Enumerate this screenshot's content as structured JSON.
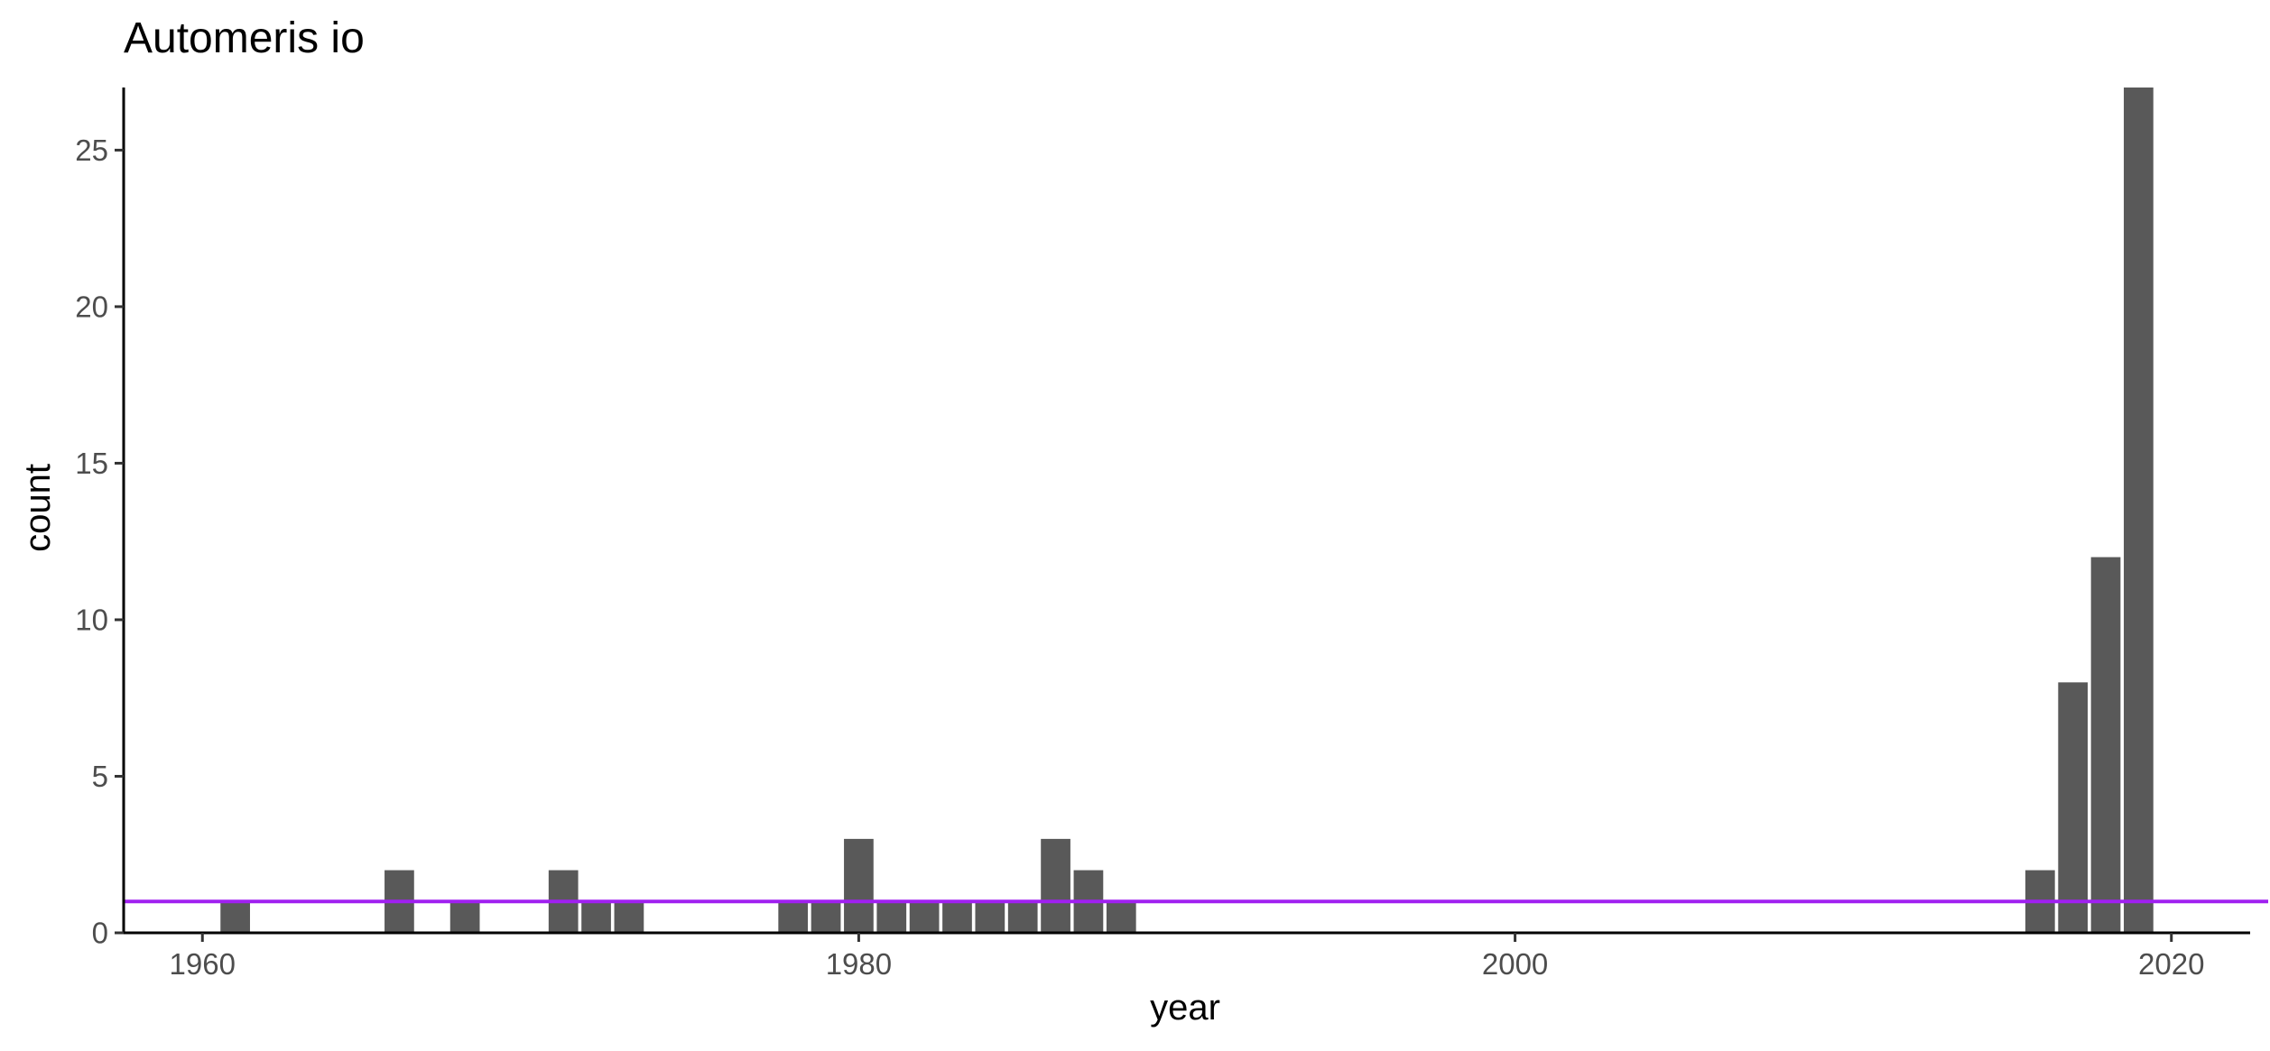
{
  "chart_data": {
    "type": "bar",
    "title": "Automeris io",
    "xlabel": "year",
    "ylabel": "count",
    "xlim": [
      1957.6,
      2022.4
    ],
    "ylim": [
      0,
      27
    ],
    "x_ticks": [
      1960,
      1980,
      2000,
      2020
    ],
    "y_ticks": [
      0,
      5,
      10,
      15,
      20,
      25
    ],
    "bar_color": "#595959",
    "reference_line": {
      "y": 1,
      "color": "#a020f0"
    },
    "grid": false,
    "legend": "none",
    "bars": [
      {
        "x": 1961,
        "y": 1
      },
      {
        "x": 1966,
        "y": 2
      },
      {
        "x": 1968,
        "y": 1
      },
      {
        "x": 1971,
        "y": 2
      },
      {
        "x": 1972,
        "y": 1
      },
      {
        "x": 1973,
        "y": 1
      },
      {
        "x": 1978,
        "y": 1
      },
      {
        "x": 1979,
        "y": 1
      },
      {
        "x": 1980,
        "y": 3
      },
      {
        "x": 1981,
        "y": 1
      },
      {
        "x": 1982,
        "y": 1
      },
      {
        "x": 1983,
        "y": 1
      },
      {
        "x": 1984,
        "y": 1
      },
      {
        "x": 1985,
        "y": 1
      },
      {
        "x": 1986,
        "y": 3
      },
      {
        "x": 1987,
        "y": 2
      },
      {
        "x": 1988,
        "y": 1
      },
      {
        "x": 2016,
        "y": 2
      },
      {
        "x": 2017,
        "y": 8
      },
      {
        "x": 2018,
        "y": 12
      },
      {
        "x": 2019,
        "y": 27
      }
    ]
  }
}
